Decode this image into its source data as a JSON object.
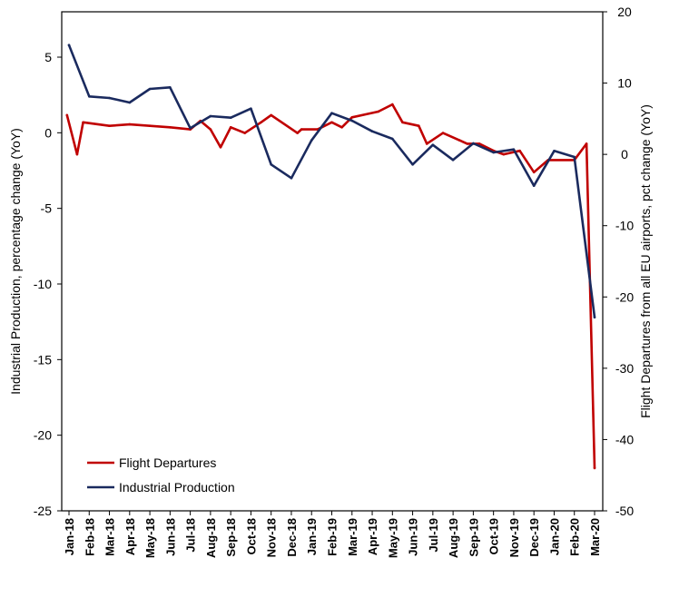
{
  "chart_data": {
    "type": "line",
    "categories": [
      "Jan-18",
      "Feb-18",
      "Mar-18",
      "Apr-18",
      "May-18",
      "Jun-18",
      "Jul-18",
      "Aug-18",
      "Sep-18",
      "Oct-18",
      "Nov-18",
      "Dec-18",
      "Jan-19",
      "Feb-19",
      "Mar-19",
      "Apr-19",
      "May-19",
      "Jun-19",
      "Jul-19",
      "Aug-19",
      "Sep-19",
      "Oct-19",
      "Nov-19",
      "Dec-19",
      "Jan-20",
      "Feb-20",
      "Mar-20"
    ],
    "y_left": {
      "label": "Industrial Production, percentage change (YoY)",
      "ylim": [
        -25,
        8
      ],
      "ticks": [
        5,
        0,
        -5,
        -10,
        -15,
        -20,
        -25
      ],
      "tick_labels": [
        "5",
        "0",
        "-5",
        "-10",
        "-15",
        "-20",
        "-25"
      ]
    },
    "y_right": {
      "label": "Flight Departures from all EU airports, pct change (YoY)",
      "ylim": [
        -50,
        20
      ],
      "ticks": [
        20,
        10,
        0,
        -10,
        -20,
        -30,
        -40,
        -50
      ],
      "tick_labels": [
        "20",
        "10",
        "0",
        "-10",
        "-20",
        "-30",
        "-40",
        "-50"
      ]
    },
    "series": [
      {
        "name": "Flight Departures",
        "axis": "right",
        "color": "#c00000",
        "x": [
          "Jan-18",
          "Jan-18",
          "Feb-18",
          "Mar-18",
          "Apr-18",
          "May-18",
          "Jun-18",
          "Jul-18",
          "Aug-18",
          "Aug-18",
          "Sep-18",
          "Sep-18",
          "Oct-18",
          "Nov-18",
          "Nov-18",
          "Dec-18",
          "Jan-19",
          "Jan-19",
          "Feb-19",
          "Mar-19",
          "Mar-19",
          "Apr-19",
          "May-19",
          "May-19",
          "Jun-19",
          "Jul-19",
          "Jul-19",
          "Aug-19",
          "Sep-19",
          "Sep-19",
          "Oct-19",
          "Nov-19",
          "Nov-19",
          "Dec-19",
          "Jan-20",
          "Feb-20",
          "Feb-20",
          "Mar-20"
        ],
        "values": [
          5.5,
          0.0,
          4.5,
          4.0,
          4.2,
          4.0,
          3.8,
          3.5,
          4.7,
          3.5,
          1.0,
          3.8,
          3.0,
          4.5,
          5.5,
          3.0,
          3.5,
          3.5,
          4.5,
          3.8,
          5.2,
          6.0,
          7.0,
          4.5,
          4.0,
          1.5,
          3.0,
          2.0,
          1.5,
          1.5,
          0.5,
          0.0,
          0.5,
          -2.5,
          -0.8,
          -0.8,
          1.5,
          -44.0
        ],
        "x_offsets": [
          -0.1,
          0.4,
          -0.3,
          0.0,
          0.0,
          0.0,
          0.0,
          0.0,
          -0.5,
          0.0,
          -0.5,
          0.0,
          -0.3,
          -0.5,
          0.0,
          0.3,
          -0.5,
          0.3,
          0.0,
          -0.5,
          0.0,
          0.3,
          0.0,
          0.5,
          0.3,
          -0.3,
          0.5,
          0.3,
          -0.3,
          0.3,
          0.0,
          -0.5,
          0.3,
          0.0,
          -0.3,
          0.0,
          0.6,
          0.0
        ]
      },
      {
        "name": "Industrial Production",
        "axis": "left",
        "color": "#1a2a5e",
        "x": [
          "Jan-18",
          "Feb-18",
          "Mar-18",
          "Apr-18",
          "May-18",
          "Jun-18",
          "Jul-18",
          "Aug-18",
          "Sep-18",
          "Oct-18",
          "Nov-18",
          "Dec-18",
          "Jan-19",
          "Feb-19",
          "Mar-19",
          "Apr-19",
          "May-19",
          "Jun-19",
          "Jul-19",
          "Aug-19",
          "Sep-19",
          "Oct-19",
          "Nov-19",
          "Dec-19",
          "Jan-20",
          "Feb-20",
          "Mar-20"
        ],
        "values": [
          5.8,
          2.4,
          2.3,
          2.0,
          2.9,
          3.0,
          0.3,
          1.1,
          1.0,
          1.6,
          -2.1,
          -3.0,
          -0.5,
          1.3,
          0.8,
          0.1,
          -0.4,
          -2.1,
          -0.8,
          -1.8,
          -0.7,
          -1.3,
          -1.1,
          -3.5,
          -1.2,
          -1.6,
          -12.2
        ]
      }
    ],
    "legend": {
      "position": "bottom-left",
      "entries": [
        "Flight Departures",
        "Industrial Production"
      ]
    },
    "grid": false
  }
}
